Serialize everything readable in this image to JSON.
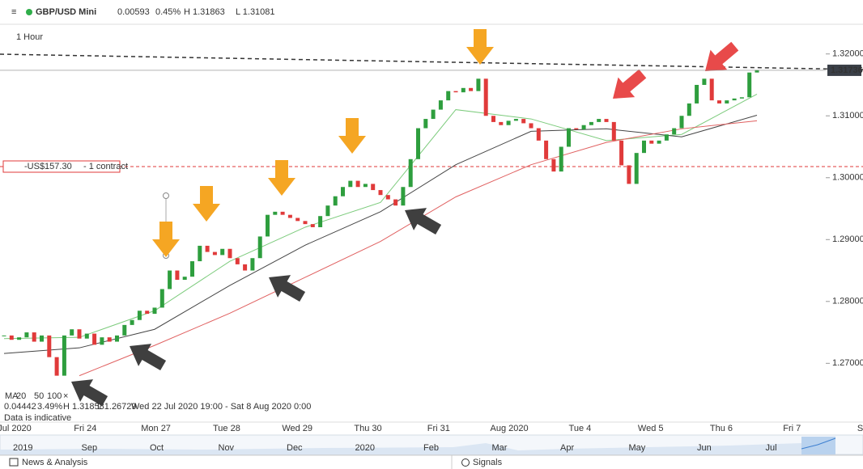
{
  "header": {
    "menu": "≡",
    "instrument": "GBP/USD Mini",
    "stats": [
      "0.00593",
      "0.45%",
      "H 1.31863",
      "L 1.31081"
    ]
  },
  "chart_data": {
    "type": "candlestick",
    "timeframe": "1 Hour",
    "closes": [
      1.2745,
      1.2738,
      1.2742,
      1.275,
      1.2735,
      1.2745,
      1.271,
      1.268,
      1.2745,
      1.2755,
      1.274,
      1.2748,
      1.273,
      1.2742,
      1.2735,
      1.2745,
      1.2762,
      1.277,
      1.2785,
      1.278,
      1.279,
      1.282,
      1.285,
      1.2835,
      1.284,
      1.2865,
      1.289,
      1.288,
      1.2875,
      1.2885,
      1.287,
      1.286,
      1.285,
      1.287,
      1.2905,
      1.294,
      1.2945,
      1.294,
      1.2935,
      1.293,
      1.2925,
      1.292,
      1.2938,
      1.2955,
      1.297,
      1.2985,
      1.2995,
      1.2985,
      1.299,
      1.298,
      1.2972,
      1.2965,
      1.2955,
      1.2985,
      1.303,
      1.308,
      1.3095,
      1.311,
      1.3125,
      1.314,
      1.3138,
      1.3145,
      1.314,
      1.316,
      1.31,
      1.309,
      1.3085,
      1.3092,
      1.3095,
      1.3088,
      1.308,
      1.306,
      1.303,
      1.301,
      1.305,
      1.308,
      1.3078,
      1.3085,
      1.309,
      1.3095,
      1.309,
      1.306,
      1.302,
      1.299,
      1.304,
      1.306,
      1.3055,
      1.306,
      1.307,
      1.308,
      1.31,
      1.312,
      1.315,
      1.316,
      1.3125,
      1.312,
      1.3125,
      1.3128,
      1.313,
      1.317,
      1.3174
    ],
    "up_color": "#2e9e3e",
    "down_color": "#e03a3a",
    "moving_averages": [
      {
        "name": "20",
        "color": "#7ccb7c",
        "x": [
          0,
          10,
          20,
          30,
          40,
          50,
          60,
          70,
          80,
          90,
          100
        ],
        "values": [
          1.274,
          1.2742,
          1.2785,
          1.2865,
          1.292,
          1.296,
          1.311,
          1.3095,
          1.306,
          1.307,
          1.3135
        ]
      },
      {
        "name": "50",
        "color": "#444444",
        "x": [
          0,
          10,
          20,
          30,
          40,
          50,
          60,
          70,
          80,
          90,
          100
        ],
        "values": [
          1.2716,
          1.2725,
          1.2755,
          1.2826,
          1.2891,
          1.2945,
          1.3021,
          1.3075,
          1.3079,
          1.3066,
          1.3101
        ]
      },
      {
        "name": "100",
        "color": "#e06060",
        "x": [
          10,
          20,
          30,
          40,
          50,
          60,
          70,
          80,
          90,
          100
        ],
        "values": [
          1.268,
          1.2729,
          1.2781,
          1.2839,
          1.2897,
          1.2969,
          1.3021,
          1.3057,
          1.3079,
          1.3092
        ]
      }
    ],
    "ylim": [
      1.2605,
      1.3248
    ],
    "yticks": [
      {
        "value": 1.27,
        "label": "1.27000"
      },
      {
        "value": 1.28,
        "label": "1.28000"
      },
      {
        "value": 1.29,
        "label": "1.29000"
      },
      {
        "value": 1.3,
        "label": "1.30000"
      },
      {
        "value": 1.31,
        "label": "1.31000"
      },
      {
        "value": 1.32,
        "label": "1.32000"
      }
    ],
    "current_price": {
      "value": 1.31736,
      "label": "1.31736"
    },
    "position": {
      "level": 1.3018,
      "pnl": "-US$157.30",
      "size": "- 1 contract"
    },
    "x_labels": [
      "Jul 2020",
      "Fri 24",
      "Mon 27",
      "Tue 28",
      "Wed 29",
      "Thu 30",
      "Fri 31",
      "Aug 2020",
      "Tue 4",
      "Wed 5",
      "Thu 6",
      "Fri 7",
      "Sa"
    ],
    "navigator_labels": [
      "2019",
      "Sep",
      "Oct",
      "Nov",
      "Dec",
      "2020",
      "Feb",
      "Mar",
      "Apr",
      "May",
      "Jun",
      "Jul"
    ],
    "ma_legend": {
      "label": "MA",
      "close": "×"
    },
    "info": [
      "0.04442",
      "3.49%",
      "H 1.31858",
      "L 1.26729",
      "Wed 22 Jul 2020 19:00 - Sat 8 Aug 2020 0:00"
    ],
    "note": "Data is indicative"
  },
  "footer": {
    "left": "News & Analysis",
    "right": "Signals"
  }
}
